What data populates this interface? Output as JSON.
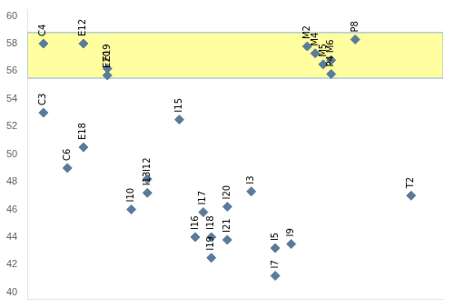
{
  "chart_data": {
    "type": "scatter",
    "x": [
      1,
      1,
      2.5,
      3.5,
      3.5,
      5.0,
      5.0,
      6.5,
      7.5,
      7.5,
      9.5,
      10.5,
      11.0,
      11.5,
      11.5,
      12.5,
      12.5,
      14.0,
      15.5,
      15.5,
      16.5,
      17.5,
      18.0,
      18.5,
      19.0,
      19.0,
      20.5,
      24.0
    ],
    "values": [
      58.0,
      53.0,
      49.0,
      58.0,
      50.5,
      56.2,
      55.7,
      46.0,
      48.2,
      47.2,
      52.5,
      44.0,
      45.8,
      44.0,
      42.5,
      46.2,
      43.8,
      47.3,
      43.2,
      41.2,
      43.5,
      57.8,
      57.3,
      56.5,
      56.8,
      55.8,
      58.3,
      47.0
    ],
    "labels": [
      "C4",
      "C3",
      "C6",
      "E12",
      "E18",
      "E19",
      "E20",
      "I10",
      "I12",
      "I13",
      "I15",
      "I16",
      "I17",
      "I18",
      "I19",
      "I20",
      "I21",
      "I3",
      "I5",
      "I7",
      "I9",
      "M2",
      "M4",
      "M5",
      "M6",
      "P4",
      "P8",
      "T2"
    ],
    "color": "#5B7B9A",
    "marker": "diamond",
    "band": {
      "ylim": [
        55.5,
        58.8
      ],
      "color": "#FFFFA0",
      "edge_color": "#99BBDD"
    },
    "xlim": [
      0,
      26
    ],
    "ylim": [
      39.5,
      60.5
    ],
    "yticks": [
      40,
      42,
      44,
      46,
      48,
      50,
      52,
      54,
      56,
      58,
      60
    ],
    "grid": false,
    "tick_labels": "y"
  }
}
